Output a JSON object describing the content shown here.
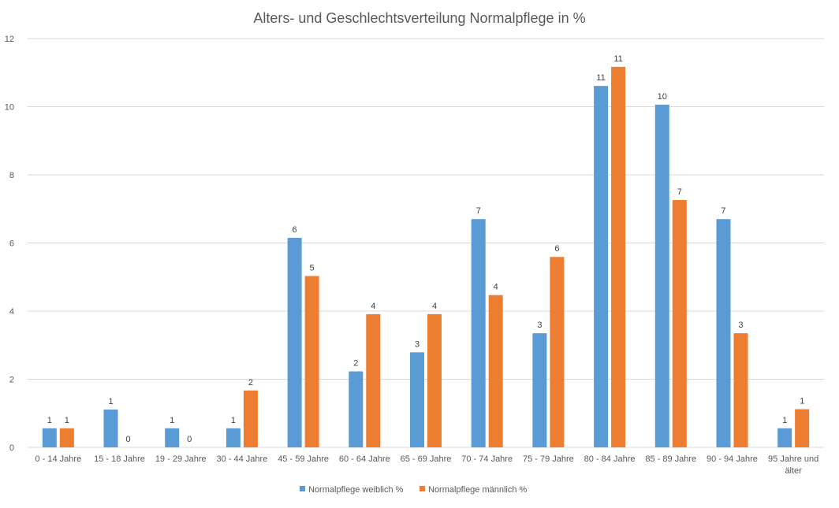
{
  "chart_data": {
    "type": "bar",
    "title": "Alters- und Geschlechtsverteilung Normalpflege in %",
    "xlabel": "",
    "ylabel": "",
    "ylim": [
      0,
      12
    ],
    "yticks": [
      "0",
      "2",
      "4",
      "6",
      "8",
      "10",
      "12"
    ],
    "grid": true,
    "legend_position": "bottom",
    "categories": [
      [
        "0 - 14 Jahre"
      ],
      [
        "15 - 18 Jahre"
      ],
      [
        "19 - 29 Jahre"
      ],
      [
        "30 - 44 Jahre"
      ],
      [
        "45 - 59 Jahre"
      ],
      [
        "60 - 64 Jahre"
      ],
      [
        "65 - 69 Jahre"
      ],
      [
        "70 - 74 Jahre"
      ],
      [
        "75 - 79 Jahre"
      ],
      [
        "80 - 84 Jahre"
      ],
      [
        "85 - 89 Jahre"
      ],
      [
        "90 - 94 Jahre"
      ],
      [
        "95 Jahre und",
        "älter"
      ]
    ],
    "series": [
      {
        "name": "Normalpflege weiblich %",
        "color": "#5b9bd5",
        "values": [
          0.56,
          1.11,
          0.56,
          0.56,
          6.15,
          2.23,
          2.79,
          6.7,
          3.35,
          10.61,
          10.06,
          6.7,
          0.56
        ],
        "labels": [
          "1",
          "1",
          "1",
          "1",
          "6",
          "2",
          "3",
          "7",
          "3",
          "11",
          "10",
          "7",
          "1"
        ]
      },
      {
        "name": "Normalpflege männlich %",
        "color": "#ed7d31",
        "values": [
          0.56,
          0,
          0,
          1.67,
          5.03,
          3.91,
          3.91,
          4.47,
          5.59,
          11.17,
          7.26,
          3.35,
          1.12
        ],
        "labels": [
          "1",
          "0",
          "0",
          "2",
          "5",
          "4",
          "4",
          "4",
          "6",
          "11",
          "7",
          "3",
          "1"
        ]
      }
    ]
  }
}
